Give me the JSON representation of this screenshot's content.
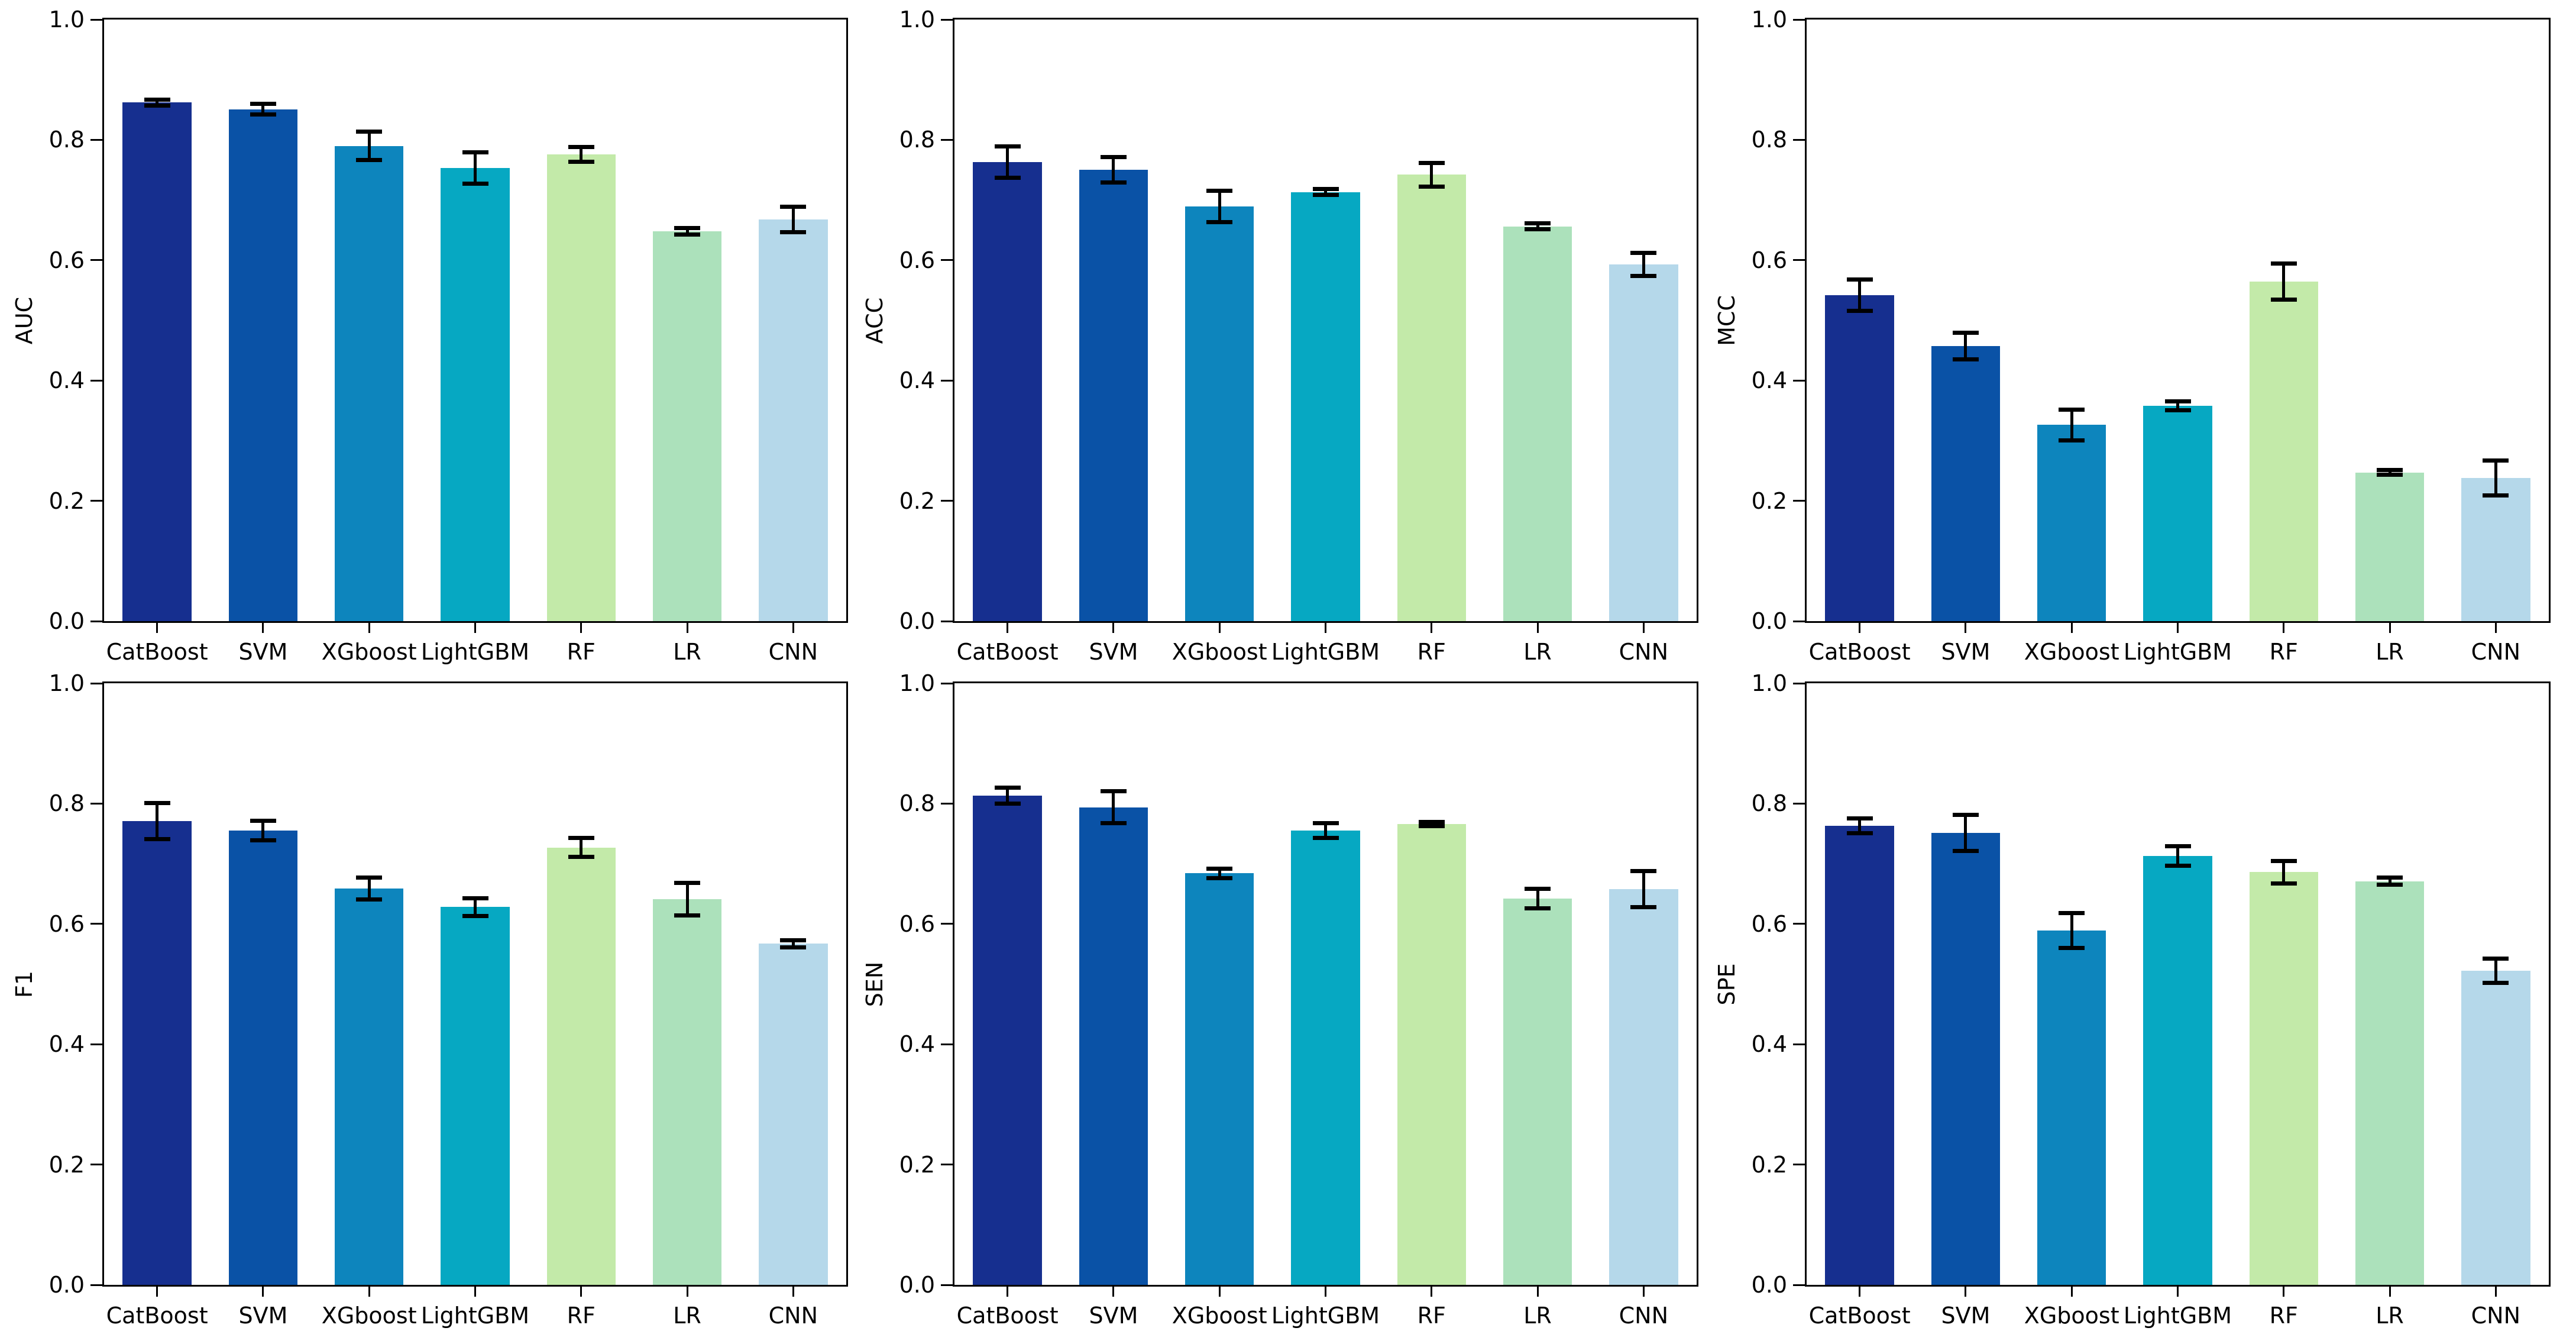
{
  "figure": {
    "background": "#ffffff",
    "axis_color": "#000000",
    "errorbar_color": "#000000"
  },
  "models": [
    "CatBoost",
    "SVM",
    "XGboost",
    "LightGBM",
    "RF",
    "LR",
    "CNN"
  ],
  "bar_colors": [
    "#162f8f",
    "#0a52a6",
    "#0d85bd",
    "#06a8c2",
    "#c3eaa9",
    "#ace1bb",
    "#b5d8ea"
  ],
  "chart_data": [
    {
      "type": "bar",
      "ylabel": "AUC",
      "categories": [
        "CatBoost",
        "SVM",
        "XGboost",
        "LightGBM",
        "RF",
        "LR",
        "CNN"
      ],
      "values": [
        0.862,
        0.851,
        0.79,
        0.753,
        0.776,
        0.648,
        0.668
      ],
      "errors": [
        0.005,
        0.009,
        0.024,
        0.026,
        0.012,
        0.005,
        0.021
      ],
      "ylim": [
        0.0,
        1.0
      ],
      "yticks": [
        "0.0",
        "0.2",
        "0.4",
        "0.6",
        "0.8",
        "1.0"
      ],
      "grid": false,
      "legend": "none"
    },
    {
      "type": "bar",
      "ylabel": "ACC",
      "categories": [
        "CatBoost",
        "SVM",
        "XGboost",
        "LightGBM",
        "RF",
        "LR",
        "CNN"
      ],
      "values": [
        0.763,
        0.75,
        0.689,
        0.713,
        0.742,
        0.656,
        0.593
      ],
      "errors": [
        0.026,
        0.021,
        0.026,
        0.005,
        0.02,
        0.005,
        0.019
      ],
      "ylim": [
        0.0,
        1.0
      ],
      "yticks": [
        "0.0",
        "0.2",
        "0.4",
        "0.6",
        "0.8",
        "1.0"
      ],
      "grid": false,
      "legend": "none"
    },
    {
      "type": "bar",
      "ylabel": "MCC",
      "categories": [
        "CatBoost",
        "SVM",
        "XGboost",
        "LightGBM",
        "RF",
        "LR",
        "CNN"
      ],
      "values": [
        0.542,
        0.457,
        0.326,
        0.358,
        0.564,
        0.247,
        0.238
      ],
      "errors": [
        0.026,
        0.022,
        0.026,
        0.007,
        0.03,
        0.004,
        0.029
      ],
      "ylim": [
        0.0,
        1.0
      ],
      "yticks": [
        "0.0",
        "0.2",
        "0.4",
        "0.6",
        "0.8",
        "1.0"
      ],
      "grid": false,
      "legend": "none"
    },
    {
      "type": "bar",
      "ylabel": "F1",
      "categories": [
        "CatBoost",
        "SVM",
        "XGboost",
        "LightGBM",
        "RF",
        "LR",
        "CNN"
      ],
      "values": [
        0.771,
        0.755,
        0.659,
        0.628,
        0.727,
        0.641,
        0.567
      ],
      "errors": [
        0.03,
        0.016,
        0.018,
        0.015,
        0.016,
        0.027,
        0.006
      ],
      "ylim": [
        0.0,
        1.0
      ],
      "yticks": [
        "0.0",
        "0.2",
        "0.4",
        "0.6",
        "0.8",
        "1.0"
      ],
      "grid": false,
      "legend": "none"
    },
    {
      "type": "bar",
      "ylabel": "SEN",
      "categories": [
        "CatBoost",
        "SVM",
        "XGboost",
        "LightGBM",
        "RF",
        "LR",
        "CNN"
      ],
      "values": [
        0.813,
        0.794,
        0.684,
        0.755,
        0.766,
        0.642,
        0.658
      ],
      "errors": [
        0.013,
        0.027,
        0.008,
        0.012,
        0.003,
        0.016,
        0.03
      ],
      "ylim": [
        0.0,
        1.0
      ],
      "yticks": [
        "0.0",
        "0.2",
        "0.4",
        "0.6",
        "0.8",
        "1.0"
      ],
      "grid": false,
      "legend": "none"
    },
    {
      "type": "bar",
      "ylabel": "SPE",
      "categories": [
        "CatBoost",
        "SVM",
        "XGboost",
        "LightGBM",
        "RF",
        "LR",
        "CNN"
      ],
      "values": [
        0.763,
        0.751,
        0.589,
        0.713,
        0.686,
        0.671,
        0.522
      ],
      "errors": [
        0.012,
        0.03,
        0.029,
        0.016,
        0.019,
        0.006,
        0.02
      ],
      "ylim": [
        0.0,
        1.0
      ],
      "yticks": [
        "0.0",
        "0.2",
        "0.4",
        "0.6",
        "0.8",
        "1.0"
      ],
      "grid": false,
      "legend": "none"
    }
  ]
}
